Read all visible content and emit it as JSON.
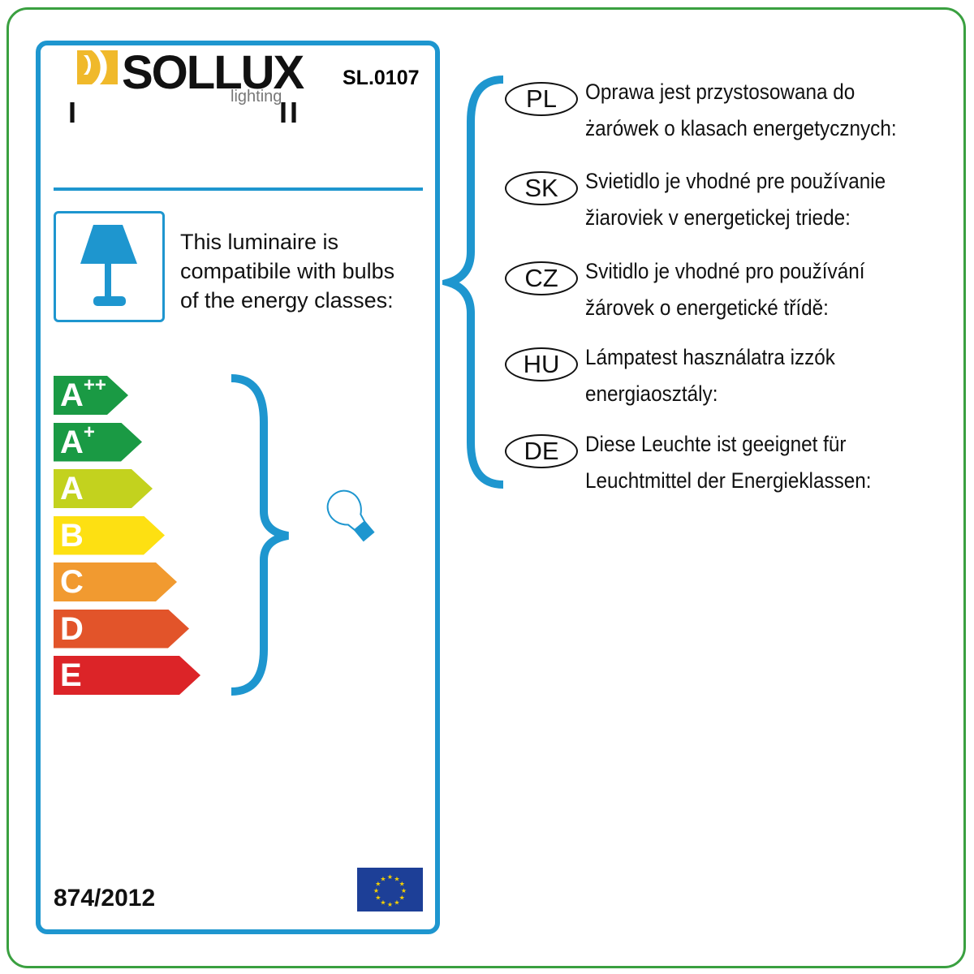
{
  "brand": {
    "name": "SOLLUX",
    "sub": "lighting",
    "accent": "#f0b92b"
  },
  "model": "SL.0107",
  "marks": {
    "left": "I",
    "right": "II"
  },
  "compat_text": [
    "This luminaire is",
    "compatibile with bulbs",
    "of the energy classes:"
  ],
  "energy_classes": [
    {
      "letter": "A",
      "sup": "++",
      "color": "#1a9a44"
    },
    {
      "letter": "A",
      "sup": "+",
      "color": "#1a9a44"
    },
    {
      "letter": "A",
      "sup": "",
      "color": "#c3d21e"
    },
    {
      "letter": "B",
      "sup": "",
      "color": "#fde012"
    },
    {
      "letter": "C",
      "sup": "",
      "color": "#f19a30"
    },
    {
      "letter": "D",
      "sup": "",
      "color": "#e2542a"
    },
    {
      "letter": "E",
      "sup": "",
      "color": "#dc2428"
    }
  ],
  "regulation": "874/2012",
  "icons": {
    "lamp": "table-lamp-icon",
    "bulb": "light-bulb-icon",
    "flag": "eu-flag-icon"
  },
  "colors": {
    "frame": "#1e96cf",
    "outer": "#3aa040"
  },
  "languages": [
    {
      "code": "PL",
      "lines": [
        "Oprawa jest przystosowana do",
        "żarówek o klasach energetycznych:"
      ]
    },
    {
      "code": "SK",
      "lines": [
        "Svietidlo je vhodné pre používanie",
        "žiaroviek v energetickej triede:"
      ]
    },
    {
      "code": "CZ",
      "lines": [
        "Svitidlo je vhodné pro používání",
        "žárovek o energetické třídě:"
      ]
    },
    {
      "code": "HU",
      "lines": [
        "Lámpatest használatra izzók",
        "energiaosztály:"
      ]
    },
    {
      "code": "DE",
      "lines": [
        "Diese Leuchte ist geeignet für",
        "Leuchtmittel der Energieklassen:"
      ]
    }
  ]
}
